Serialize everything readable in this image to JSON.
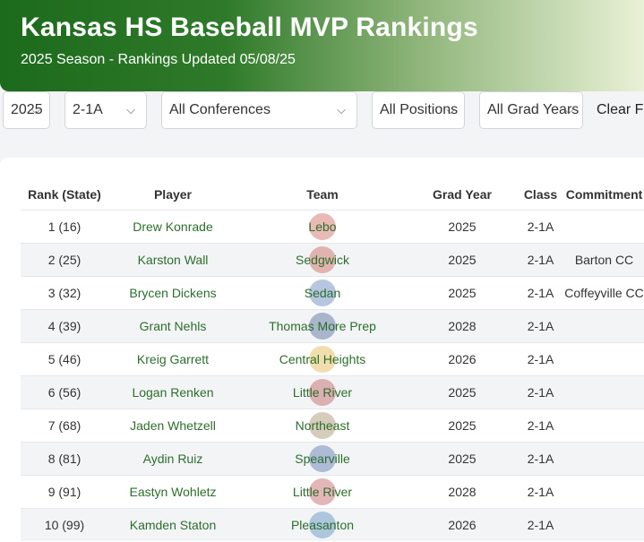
{
  "header": {
    "title": "Kansas HS Baseball MVP Rankings",
    "subtitle": "2025 Season - Rankings Updated 05/08/25"
  },
  "filters": {
    "year": "2025",
    "class": "2-1A",
    "conference": "All Conferences",
    "position": "All Positions",
    "grad_year": "All Grad Years",
    "clear_label": "Clear Fi"
  },
  "table": {
    "headers": [
      "Rank (State)",
      "Player",
      "Team",
      "Grad Year",
      "Class",
      "Commitment"
    ],
    "rows": [
      {
        "rank": "1 (16)",
        "player": "Drew Konrade",
        "team": "Lebo",
        "grad": "2025",
        "class": "2-1A",
        "commit": "",
        "logo_color": "#c0392b"
      },
      {
        "rank": "2 (25)",
        "player": "Karston Wall",
        "team": "Sedgwick",
        "grad": "2025",
        "class": "2-1A",
        "commit": "Barton CC",
        "logo_color": "#c0392b"
      },
      {
        "rank": "3 (32)",
        "player": "Brycen Dickens",
        "team": "Sedan",
        "grad": "2025",
        "class": "2-1A",
        "commit": "Coffeyville CC",
        "logo_color": "#2e5ca8"
      },
      {
        "rank": "4 (39)",
        "player": "Grant Nehls",
        "team": "Thomas More Prep",
        "grad": "2028",
        "class": "2-1A",
        "commit": "",
        "logo_color": "#1f3f7a"
      },
      {
        "rank": "5 (46)",
        "player": "Kreig Garrett",
        "team": "Central Heights",
        "grad": "2026",
        "class": "2-1A",
        "commit": "",
        "logo_color": "#d4a017"
      },
      {
        "rank": "6 (56)",
        "player": "Logan Renken",
        "team": "Little River",
        "grad": "2025",
        "class": "2-1A",
        "commit": "",
        "logo_color": "#b03030"
      },
      {
        "rank": "7 (68)",
        "player": "Jaden Whetzell",
        "team": "Northeast",
        "grad": "2025",
        "class": "2-1A",
        "commit": "",
        "logo_color": "#8a6d3b"
      },
      {
        "rank": "8 (81)",
        "player": "Aydin Ruiz",
        "team": "Spearville",
        "grad": "2025",
        "class": "2-1A",
        "commit": "",
        "logo_color": "#2a4f9c"
      },
      {
        "rank": "9 (91)",
        "player": "Eastyn Wohletz",
        "team": "Little River",
        "grad": "2028",
        "class": "2-1A",
        "commit": "",
        "logo_color": "#b03030"
      },
      {
        "rank": "10 (99)",
        "player": "Kamden Staton",
        "team": "Pleasanton",
        "grad": "2026",
        "class": "2-1A",
        "commit": "",
        "logo_color": "#2a6fb0"
      }
    ]
  }
}
